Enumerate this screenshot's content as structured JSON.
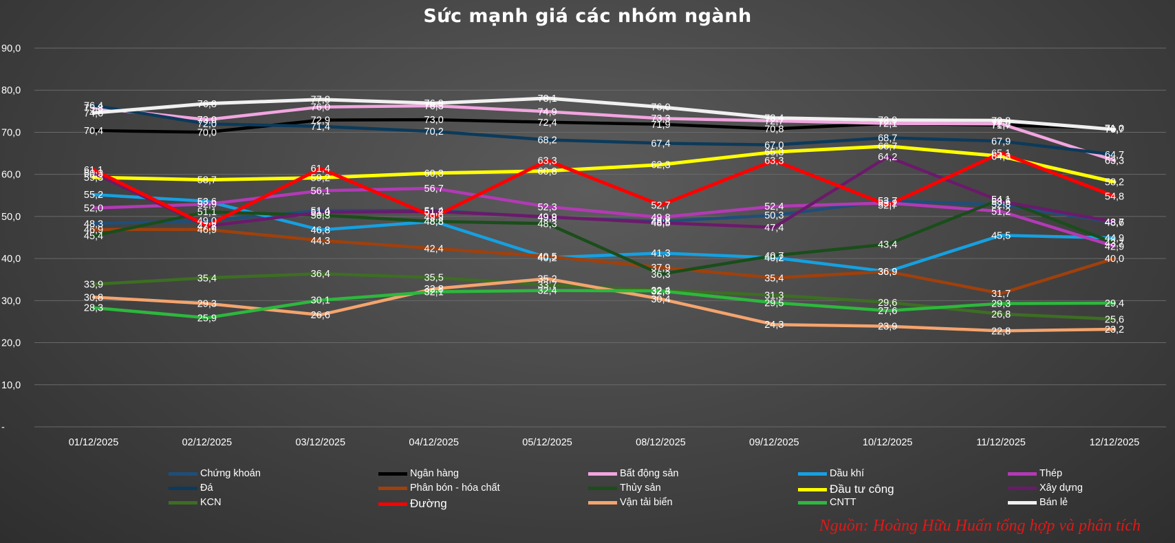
{
  "chart_data": {
    "type": "line",
    "title": "Sức mạnh giá các nhóm ngành",
    "source_note": "Nguồn: Hoàng Hữu Huấn tổng hợp và phân tích",
    "categories": [
      "01/12/2025",
      "02/12/2025",
      "03/12/2025",
      "04/12/2025",
      "05/12/2025",
      "08/12/2025",
      "09/12/2025",
      "10/12/2025",
      "11/12/2025",
      "12/12/2025"
    ],
    "y_ticks": [
      "-",
      "10,0",
      "20,0",
      "30,0",
      "40,0",
      "50,0",
      "60,0",
      "70,0",
      "80,0",
      "90,0"
    ],
    "ylim": [
      0,
      90
    ],
    "grid": true,
    "legend_position": "bottom",
    "series": [
      {
        "name": "Chứng khoán",
        "color": "#1f4e79",
        "values": [
          48.3,
          49.0,
          51.4,
          51.4,
          49.8,
          48.8,
          50.3,
          53.7,
          52.8,
          48.6
        ]
      },
      {
        "name": "Ngân hàng",
        "color": "#000000",
        "values": [
          70.4,
          70.0,
          72.9,
          73.0,
          72.4,
          71.9,
          70.8,
          72.1,
          71.7,
          71.0
        ]
      },
      {
        "name": "Bất động sản",
        "color": "#f2a5e0",
        "values": [
          75.8,
          73.0,
          76.0,
          76.3,
          74.9,
          73.3,
          72.7,
          72.1,
          72.0,
          63.3
        ]
      },
      {
        "name": "Dầu khí",
        "color": "#16a0e0",
        "values": [
          55.2,
          53.6,
          46.8,
          48.8,
          40.2,
          41.3,
          40.2,
          36.9,
          45.5,
          44.9
        ]
      },
      {
        "name": "Thép",
        "color": "#b23ab5",
        "values": [
          52.0,
          52.9,
          56.1,
          56.7,
          52.3,
          49.8,
          52.4,
          53.2,
          51.2,
          42.9
        ]
      },
      {
        "name": "Đá",
        "color": "#0c3a5a",
        "values": [
          76.4,
          72.0,
          71.4,
          70.2,
          68.2,
          67.4,
          67.0,
          68.7,
          67.9,
          64.7
        ]
      },
      {
        "name": "Phân bón - hóa chất",
        "color": "#a0400c",
        "values": [
          46.9,
          46.9,
          44.3,
          42.4,
          40.5,
          37.9,
          35.4,
          36.9,
          31.7,
          40.0
        ]
      },
      {
        "name": "Thủy sản",
        "color": "#1a4d1a",
        "values": [
          45.4,
          51.1,
          50.3,
          48.8,
          48.3,
          36.3,
          40.7,
          43.4,
          54.1,
          43.7
        ]
      },
      {
        "name": "Đầu tư công",
        "color": "#ffff00",
        "values": [
          59.3,
          58.7,
          59.2,
          60.3,
          60.8,
          62.3,
          65.3,
          66.7,
          64.3,
          58.2
        ]
      },
      {
        "name": "Xây dựng",
        "color": "#6b1a6b",
        "values": [
          60.3,
          47.7,
          51.0,
          51.2,
          49.9,
          48.5,
          47.4,
          64.2,
          53.6,
          48.7
        ]
      },
      {
        "name": "KCN",
        "color": "#3d6e23",
        "values": [
          33.9,
          35.4,
          36.4,
          35.5,
          33.7,
          32.4,
          31.3,
          29.6,
          26.8,
          25.6
        ]
      },
      {
        "name": "Đường",
        "color": "#ff0000",
        "values": [
          61.1,
          47.8,
          61.4,
          49.9,
          63.3,
          52.7,
          63.3,
          52.7,
          65.1,
          54.8
        ]
      },
      {
        "name": "Vận tải biển",
        "color": "#f4a46e",
        "values": [
          30.8,
          29.3,
          26.6,
          32.8,
          35.2,
          30.4,
          24.3,
          23.9,
          22.8,
          23.2
        ]
      },
      {
        "name": "CNTT",
        "color": "#2db83d",
        "values": [
          28.3,
          25.9,
          30.1,
          32.1,
          32.4,
          32.3,
          29.5,
          27.6,
          29.3,
          29.4
        ]
      },
      {
        "name": "Bán lẻ",
        "color": "#f0f0f0",
        "values": [
          74.6,
          76.8,
          77.8,
          76.9,
          78.1,
          76.0,
          73.4,
          72.9,
          72.8,
          70.7
        ]
      }
    ],
    "legend": [
      {
        "name": "Chứng khoán",
        "color": "#1f4e79"
      },
      {
        "name": "Ngân hàng",
        "color": "#000000"
      },
      {
        "name": "Bất động sản",
        "color": "#f2a5e0"
      },
      {
        "name": "Dầu khí",
        "color": "#16a0e0"
      },
      {
        "name": "Thép",
        "color": "#b23ab5"
      },
      {
        "name": "Đá",
        "color": "#0c3a5a"
      },
      {
        "name": "Phân bón - hóa chất",
        "color": "#a0400c"
      },
      {
        "name": "Thủy sản",
        "color": "#1a4d1a"
      },
      {
        "name": "Đầu tư công",
        "color": "#ffff00"
      },
      {
        "name": "Xây dựng",
        "color": "#6b1a6b"
      },
      {
        "name": "KCN",
        "color": "#3d6e23"
      },
      {
        "name": "Đường",
        "color": "#ff0000"
      },
      {
        "name": "Vận tải biển",
        "color": "#f4a46e"
      },
      {
        "name": "CNTT",
        "color": "#2db83d"
      },
      {
        "name": "Bán lẻ",
        "color": "#f0f0f0"
      }
    ]
  }
}
